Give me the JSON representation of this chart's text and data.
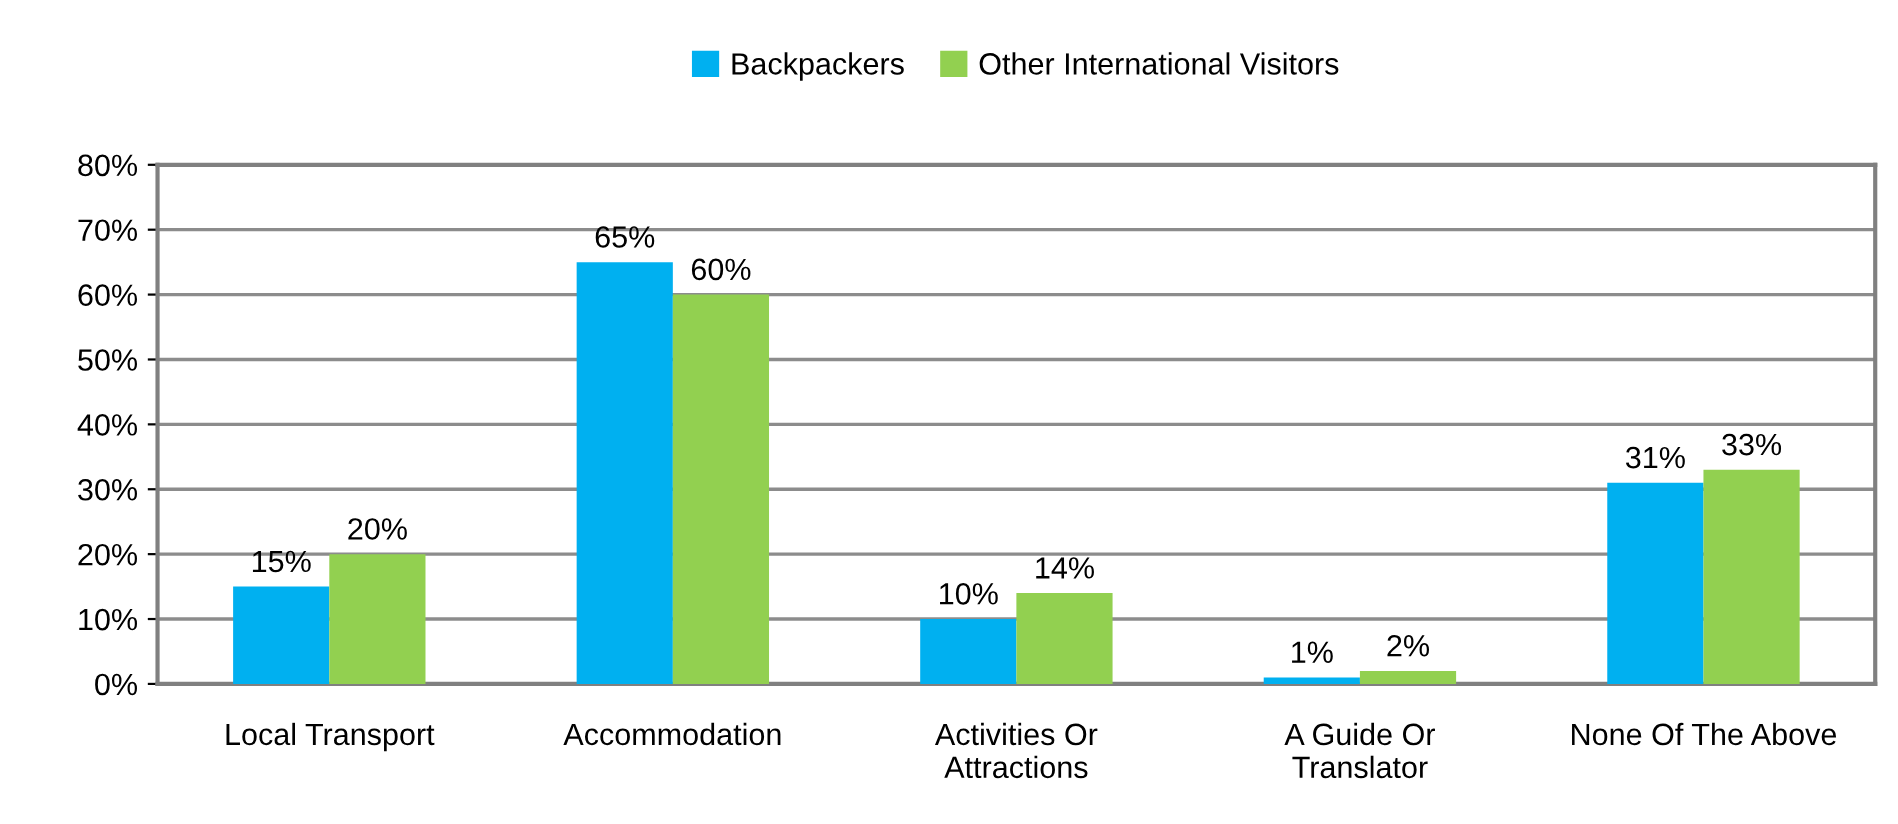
{
  "chart_data": {
    "type": "bar",
    "categories": [
      "Local Transport",
      "Accommodation",
      "Activities Or\nAttractions",
      "A Guide Or\nTranslator",
      "None Of The Above"
    ],
    "series": [
      {
        "name": "Backpackers",
        "color": "#00b0f0",
        "values": [
          15,
          65,
          10,
          1,
          31
        ],
        "value_labels": [
          "15%",
          "65%",
          "10%",
          "1%",
          "31%"
        ]
      },
      {
        "name": "Other International Visitors",
        "color": "#92d050",
        "values": [
          20,
          60,
          14,
          2,
          33
        ],
        "value_labels": [
          "20%",
          "60%",
          "14%",
          "2%",
          "33%"
        ]
      }
    ],
    "ylim": [
      0,
      80
    ],
    "yticks": [
      {
        "value": 0,
        "label": "0%"
      },
      {
        "value": 10,
        "label": "10%"
      },
      {
        "value": 20,
        "label": "20%"
      },
      {
        "value": 30,
        "label": "30%"
      },
      {
        "value": 40,
        "label": "40%"
      },
      {
        "value": 50,
        "label": "50%"
      },
      {
        "value": 60,
        "label": "60%"
      },
      {
        "value": 70,
        "label": "70%"
      },
      {
        "value": 80,
        "label": "80%"
      }
    ],
    "grid": "y",
    "legend": "top"
  }
}
